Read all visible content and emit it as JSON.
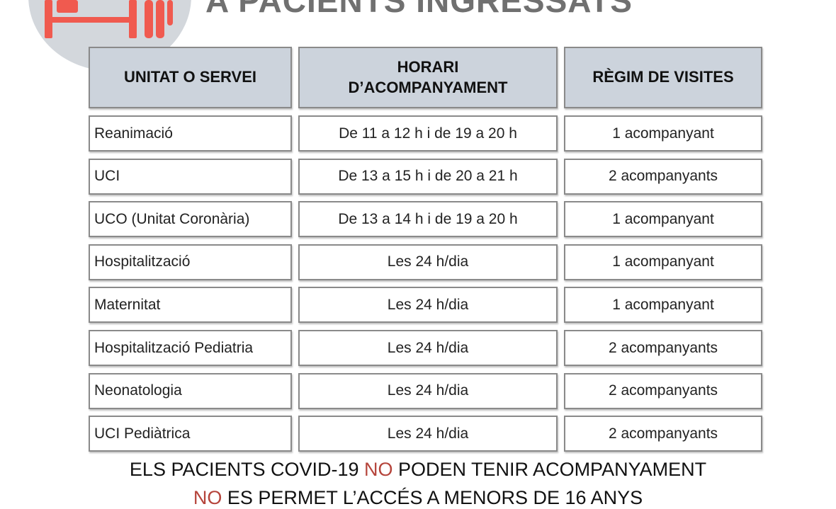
{
  "title": "A PACIENTS INGRESSATS",
  "icon": "hospital-bed-icon",
  "colors": {
    "accent": "#f05a4f",
    "header_bg": "#ccd3dc",
    "circle": "#d3d7dc",
    "highlight": "#b5443b"
  },
  "table": {
    "headers": [
      "UNITAT O SERVEI",
      "HORARI D’ACOMPANYAMENT",
      "RÈGIM DE VISITES"
    ],
    "rows": [
      [
        "Reanimació",
        "De 11 a 12 h i de 19 a 20 h",
        "1 acompanyant"
      ],
      [
        "UCI",
        "De 13 a 15 h i de 20 a 21 h",
        "2 acompanyants"
      ],
      [
        "UCO (Unitat Coronària)",
        "De 13 a 14 h i de 19 a 20 h",
        "1 acompanyant"
      ],
      [
        "Hospitalització",
        "Les 24 h/dia",
        "1 acompanyant"
      ],
      [
        "Maternitat",
        "Les 24 h/dia",
        "1 acompanyant"
      ],
      [
        "Hospitalització Pediatria",
        "Les 24 h/dia",
        "2 acompanyants"
      ],
      [
        "Neonatologia",
        "Les 24 h/dia",
        "2 acompanyants"
      ],
      [
        "UCI Pediàtrica",
        "Les 24 h/dia",
        "2 acompanyants"
      ]
    ]
  },
  "notes": {
    "line1": {
      "a": "ELS PACIENTS COVID-19 ",
      "no": "NO",
      "b": " PODEN TENIR ACOMPANYAMENT"
    },
    "line2": {
      "no": "NO",
      "b": " ES PERMET L’ACCÉS A MENORS DE 16 ANYS"
    }
  }
}
